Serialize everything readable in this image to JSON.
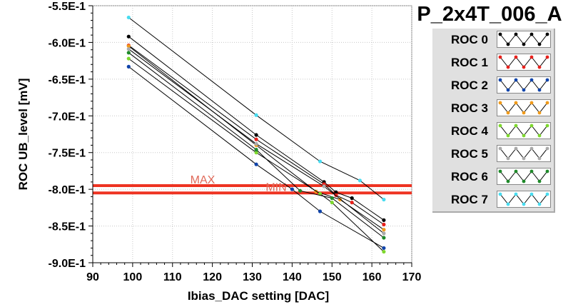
{
  "title": "P_2x4T_006_A",
  "chart_data": {
    "type": "line",
    "title": "P_2x4T_006_A",
    "xlabel": "Ibias_DAC setting [DAC]",
    "ylabel": "ROC UB_level [mV]",
    "xlim": [
      90,
      170
    ],
    "ylim": [
      -0.9,
      -0.55
    ],
    "x_ticks": [
      90,
      100,
      110,
      120,
      130,
      140,
      150,
      160,
      170
    ],
    "y_ticks": [
      -0.55,
      -0.6,
      -0.65,
      -0.7,
      -0.75,
      -0.8,
      -0.85,
      -0.9
    ],
    "x_tick_labels": [
      "90",
      "100",
      "110",
      "120",
      "130",
      "140",
      "150",
      "160",
      "170"
    ],
    "y_tick_labels": [
      "-5.5E-1",
      "-6.0E-1",
      "-6.5E-1",
      "-7.0E-1",
      "-7.5E-1",
      "-8.0E-1",
      "-8.5E-1",
      "-9.0E-1"
    ],
    "grid": true,
    "legend_position": "right",
    "limits": [
      {
        "name": "MAX",
        "label": "MAX",
        "y": -0.795,
        "color": "#ee3322"
      },
      {
        "name": "MIN",
        "label": "MIN",
        "y": -0.805,
        "color": "#ee3322"
      }
    ],
    "series": [
      {
        "name": "ROC 0",
        "color": "#000000",
        "x": [
          99,
          131,
          148,
          151,
          155,
          163
        ],
        "y": [
          -0.592,
          -0.726,
          -0.79,
          -0.804,
          -0.812,
          -0.842
        ]
      },
      {
        "name": "ROC 1",
        "color": "#e8211c",
        "x": [
          99,
          131,
          148,
          151,
          155,
          163
        ],
        "y": [
          -0.604,
          -0.732,
          -0.793,
          -0.808,
          -0.818,
          -0.848
        ]
      },
      {
        "name": "ROC 2",
        "color": "#1044aa",
        "x": [
          99,
          131,
          140,
          147,
          163
        ],
        "y": [
          -0.633,
          -0.766,
          -0.8,
          -0.83,
          -0.88
        ]
      },
      {
        "name": "ROC 3",
        "color": "#f09a1a",
        "x": [
          99,
          131,
          146,
          152,
          163
        ],
        "y": [
          -0.605,
          -0.74,
          -0.803,
          -0.814,
          -0.855
        ]
      },
      {
        "name": "ROC 4",
        "color": "#7ed82e",
        "x": [
          99,
          131,
          147,
          150,
          163
        ],
        "y": [
          -0.622,
          -0.75,
          -0.806,
          -0.818,
          -0.885
        ]
      },
      {
        "name": "ROC 5",
        "color": "#aaaaaa",
        "x": [
          99,
          131,
          148,
          163
        ],
        "y": [
          -0.609,
          -0.738,
          -0.796,
          -0.86
        ]
      },
      {
        "name": "ROC 6",
        "color": "#1f8a2a",
        "x": [
          99,
          131,
          142,
          150,
          163
        ],
        "y": [
          -0.614,
          -0.746,
          -0.802,
          -0.812,
          -0.866
        ]
      },
      {
        "name": "ROC 7",
        "color": "#48dcf0",
        "x": [
          99,
          131,
          147,
          157,
          163
        ],
        "y": [
          -0.566,
          -0.699,
          -0.762,
          -0.788,
          -0.814
        ]
      }
    ]
  }
}
